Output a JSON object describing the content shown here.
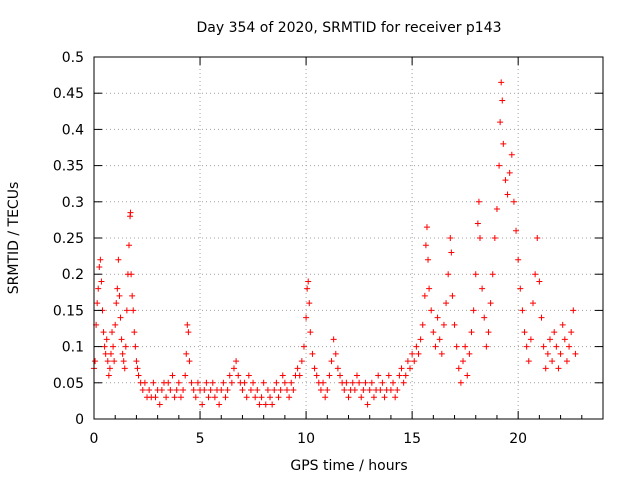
{
  "chart_data": {
    "type": "scatter",
    "title": "Day 354 of 2020, SRMTID for receiver p143",
    "xlabel": "GPS time / hours",
    "ylabel": "SRMTID / TECUs",
    "xlim": [
      0,
      24
    ],
    "ylim": [
      0,
      0.5
    ],
    "grid": true,
    "x_ticks": [
      0,
      5,
      10,
      15,
      20
    ],
    "y_ticks": [
      0,
      0.05,
      0.1,
      0.15,
      0.2,
      0.25,
      0.3,
      0.35,
      0.4,
      0.45,
      0.5
    ],
    "x_tick_labels": [
      "0",
      "5",
      "10",
      "15",
      "20"
    ],
    "y_tick_labels": [
      "0",
      "0.05",
      "0.1",
      "0.15",
      "0.2",
      "0.25",
      "0.3",
      "0.35",
      "0.4",
      "0.45",
      "0.5"
    ],
    "marker": "+",
    "series": [
      {
        "name": "SRMTID",
        "color": "#ff0000",
        "points": [
          [
            0.0,
            0.07
          ],
          [
            0.05,
            0.08
          ],
          [
            0.1,
            0.13
          ],
          [
            0.15,
            0.16
          ],
          [
            0.2,
            0.18
          ],
          [
            0.25,
            0.21
          ],
          [
            0.3,
            0.22
          ],
          [
            0.35,
            0.19
          ],
          [
            0.4,
            0.15
          ],
          [
            0.45,
            0.12
          ],
          [
            0.5,
            0.1
          ],
          [
            0.55,
            0.09
          ],
          [
            0.6,
            0.11
          ],
          [
            0.65,
            0.08
          ],
          [
            0.7,
            0.06
          ],
          [
            0.75,
            0.07
          ],
          [
            0.8,
            0.09
          ],
          [
            0.85,
            0.12
          ],
          [
            0.9,
            0.1
          ],
          [
            0.95,
            0.08
          ],
          [
            1.0,
            0.13
          ],
          [
            1.05,
            0.16
          ],
          [
            1.1,
            0.18
          ],
          [
            1.15,
            0.22
          ],
          [
            1.2,
            0.17
          ],
          [
            1.25,
            0.14
          ],
          [
            1.3,
            0.11
          ],
          [
            1.35,
            0.09
          ],
          [
            1.4,
            0.08
          ],
          [
            1.45,
            0.07
          ],
          [
            1.5,
            0.1
          ],
          [
            1.55,
            0.15
          ],
          [
            1.6,
            0.2
          ],
          [
            1.65,
            0.24
          ],
          [
            1.7,
            0.28
          ],
          [
            1.72,
            0.285
          ],
          [
            1.75,
            0.2
          ],
          [
            1.8,
            0.17
          ],
          [
            1.85,
            0.15
          ],
          [
            1.9,
            0.12
          ],
          [
            1.95,
            0.1
          ],
          [
            2.0,
            0.08
          ],
          [
            2.05,
            0.07
          ],
          [
            2.1,
            0.06
          ],
          [
            2.2,
            0.05
          ],
          [
            2.3,
            0.04
          ],
          [
            2.4,
            0.05
          ],
          [
            2.5,
            0.03
          ],
          [
            2.6,
            0.04
          ],
          [
            2.7,
            0.03
          ],
          [
            2.8,
            0.05
          ],
          [
            2.9,
            0.03
          ],
          [
            3.0,
            0.04
          ],
          [
            3.1,
            0.02
          ],
          [
            3.2,
            0.04
          ],
          [
            3.3,
            0.05
          ],
          [
            3.4,
            0.03
          ],
          [
            3.5,
            0.05
          ],
          [
            3.6,
            0.04
          ],
          [
            3.7,
            0.06
          ],
          [
            3.8,
            0.03
          ],
          [
            3.9,
            0.04
          ],
          [
            4.0,
            0.05
          ],
          [
            4.1,
            0.03
          ],
          [
            4.2,
            0.04
          ],
          [
            4.3,
            0.06
          ],
          [
            4.35,
            0.09
          ],
          [
            4.4,
            0.13
          ],
          [
            4.45,
            0.12
          ],
          [
            4.5,
            0.08
          ],
          [
            4.6,
            0.05
          ],
          [
            4.7,
            0.04
          ],
          [
            4.8,
            0.03
          ],
          [
            4.9,
            0.05
          ],
          [
            5.0,
            0.04
          ],
          [
            5.1,
            0.02
          ],
          [
            5.2,
            0.04
          ],
          [
            5.3,
            0.05
          ],
          [
            5.4,
            0.03
          ],
          [
            5.5,
            0.04
          ],
          [
            5.6,
            0.05
          ],
          [
            5.7,
            0.03
          ],
          [
            5.8,
            0.04
          ],
          [
            5.9,
            0.02
          ],
          [
            6.0,
            0.04
          ],
          [
            6.1,
            0.05
          ],
          [
            6.2,
            0.03
          ],
          [
            6.3,
            0.04
          ],
          [
            6.4,
            0.06
          ],
          [
            6.5,
            0.05
          ],
          [
            6.6,
            0.07
          ],
          [
            6.7,
            0.08
          ],
          [
            6.8,
            0.06
          ],
          [
            6.9,
            0.05
          ],
          [
            7.0,
            0.04
          ],
          [
            7.1,
            0.05
          ],
          [
            7.2,
            0.03
          ],
          [
            7.3,
            0.06
          ],
          [
            7.4,
            0.04
          ],
          [
            7.5,
            0.05
          ],
          [
            7.6,
            0.03
          ],
          [
            7.7,
            0.04
          ],
          [
            7.8,
            0.02
          ],
          [
            7.9,
            0.03
          ],
          [
            8.0,
            0.05
          ],
          [
            8.1,
            0.02
          ],
          [
            8.2,
            0.04
          ],
          [
            8.3,
            0.03
          ],
          [
            8.4,
            0.02
          ],
          [
            8.5,
            0.04
          ],
          [
            8.6,
            0.05
          ],
          [
            8.7,
            0.03
          ],
          [
            8.8,
            0.04
          ],
          [
            8.9,
            0.06
          ],
          [
            9.0,
            0.05
          ],
          [
            9.1,
            0.04
          ],
          [
            9.2,
            0.03
          ],
          [
            9.3,
            0.05
          ],
          [
            9.4,
            0.04
          ],
          [
            9.5,
            0.06
          ],
          [
            9.6,
            0.07
          ],
          [
            9.7,
            0.06
          ],
          [
            9.8,
            0.08
          ],
          [
            9.9,
            0.1
          ],
          [
            10.0,
            0.14
          ],
          [
            10.05,
            0.18
          ],
          [
            10.1,
            0.19
          ],
          [
            10.15,
            0.16
          ],
          [
            10.2,
            0.12
          ],
          [
            10.3,
            0.09
          ],
          [
            10.4,
            0.07
          ],
          [
            10.5,
            0.06
          ],
          [
            10.6,
            0.05
          ],
          [
            10.7,
            0.04
          ],
          [
            10.8,
            0.05
          ],
          [
            10.9,
            0.03
          ],
          [
            11.0,
            0.04
          ],
          [
            11.1,
            0.06
          ],
          [
            11.2,
            0.08
          ],
          [
            11.3,
            0.11
          ],
          [
            11.4,
            0.09
          ],
          [
            11.5,
            0.07
          ],
          [
            11.6,
            0.06
          ],
          [
            11.7,
            0.05
          ],
          [
            11.8,
            0.04
          ],
          [
            11.9,
            0.05
          ],
          [
            12.0,
            0.03
          ],
          [
            12.1,
            0.04
          ],
          [
            12.2,
            0.05
          ],
          [
            12.3,
            0.04
          ],
          [
            12.4,
            0.06
          ],
          [
            12.5,
            0.05
          ],
          [
            12.6,
            0.03
          ],
          [
            12.7,
            0.04
          ],
          [
            12.8,
            0.05
          ],
          [
            12.9,
            0.02
          ],
          [
            13.0,
            0.04
          ],
          [
            13.1,
            0.05
          ],
          [
            13.2,
            0.03
          ],
          [
            13.3,
            0.04
          ],
          [
            13.4,
            0.06
          ],
          [
            13.5,
            0.04
          ],
          [
            13.6,
            0.05
          ],
          [
            13.7,
            0.03
          ],
          [
            13.8,
            0.04
          ],
          [
            13.9,
            0.06
          ],
          [
            14.0,
            0.04
          ],
          [
            14.1,
            0.05
          ],
          [
            14.2,
            0.03
          ],
          [
            14.3,
            0.04
          ],
          [
            14.4,
            0.06
          ],
          [
            14.5,
            0.07
          ],
          [
            14.6,
            0.05
          ],
          [
            14.7,
            0.06
          ],
          [
            14.8,
            0.08
          ],
          [
            14.9,
            0.07
          ],
          [
            15.0,
            0.09
          ],
          [
            15.1,
            0.08
          ],
          [
            15.2,
            0.1
          ],
          [
            15.3,
            0.09
          ],
          [
            15.4,
            0.11
          ],
          [
            15.5,
            0.13
          ],
          [
            15.6,
            0.17
          ],
          [
            15.65,
            0.24
          ],
          [
            15.7,
            0.265
          ],
          [
            15.75,
            0.22
          ],
          [
            15.8,
            0.18
          ],
          [
            15.9,
            0.15
          ],
          [
            16.0,
            0.12
          ],
          [
            16.1,
            0.1
          ],
          [
            16.2,
            0.14
          ],
          [
            16.3,
            0.11
          ],
          [
            16.4,
            0.09
          ],
          [
            16.5,
            0.13
          ],
          [
            16.6,
            0.16
          ],
          [
            16.7,
            0.2
          ],
          [
            16.8,
            0.25
          ],
          [
            16.85,
            0.23
          ],
          [
            16.9,
            0.17
          ],
          [
            17.0,
            0.13
          ],
          [
            17.1,
            0.1
          ],
          [
            17.2,
            0.07
          ],
          [
            17.3,
            0.05
          ],
          [
            17.4,
            0.08
          ],
          [
            17.5,
            0.1
          ],
          [
            17.6,
            0.06
          ],
          [
            17.7,
            0.09
          ],
          [
            17.8,
            0.12
          ],
          [
            17.9,
            0.15
          ],
          [
            18.0,
            0.2
          ],
          [
            18.1,
            0.27
          ],
          [
            18.15,
            0.3
          ],
          [
            18.2,
            0.25
          ],
          [
            18.3,
            0.18
          ],
          [
            18.4,
            0.14
          ],
          [
            18.5,
            0.1
          ],
          [
            18.6,
            0.12
          ],
          [
            18.7,
            0.16
          ],
          [
            18.8,
            0.2
          ],
          [
            18.9,
            0.25
          ],
          [
            19.0,
            0.29
          ],
          [
            19.1,
            0.35
          ],
          [
            19.15,
            0.41
          ],
          [
            19.2,
            0.465
          ],
          [
            19.25,
            0.44
          ],
          [
            19.3,
            0.38
          ],
          [
            19.4,
            0.33
          ],
          [
            19.5,
            0.31
          ],
          [
            19.6,
            0.34
          ],
          [
            19.7,
            0.365
          ],
          [
            19.8,
            0.3
          ],
          [
            19.9,
            0.26
          ],
          [
            20.0,
            0.22
          ],
          [
            20.1,
            0.18
          ],
          [
            20.2,
            0.15
          ],
          [
            20.3,
            0.12
          ],
          [
            20.4,
            0.1
          ],
          [
            20.5,
            0.08
          ],
          [
            20.6,
            0.11
          ],
          [
            20.7,
            0.16
          ],
          [
            20.8,
            0.2
          ],
          [
            20.9,
            0.25
          ],
          [
            21.0,
            0.19
          ],
          [
            21.1,
            0.14
          ],
          [
            21.2,
            0.1
          ],
          [
            21.3,
            0.07
          ],
          [
            21.4,
            0.09
          ],
          [
            21.5,
            0.11
          ],
          [
            21.6,
            0.08
          ],
          [
            21.7,
            0.12
          ],
          [
            21.8,
            0.1
          ],
          [
            21.9,
            0.07
          ],
          [
            22.0,
            0.09
          ],
          [
            22.1,
            0.13
          ],
          [
            22.2,
            0.11
          ],
          [
            22.3,
            0.08
          ],
          [
            22.4,
            0.1
          ],
          [
            22.5,
            0.12
          ],
          [
            22.6,
            0.15
          ],
          [
            22.7,
            0.09
          ]
        ]
      }
    ]
  }
}
